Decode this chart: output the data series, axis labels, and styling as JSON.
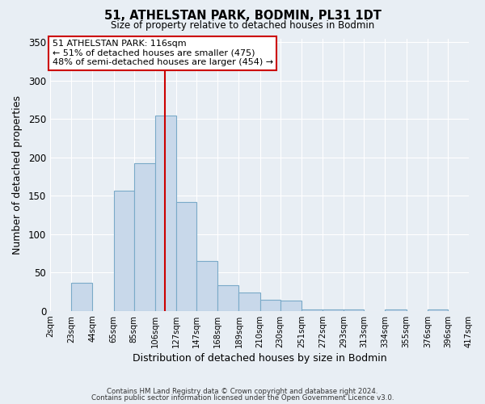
{
  "title": "51, ATHELSTAN PARK, BODMIN, PL31 1DT",
  "subtitle": "Size of property relative to detached houses in Bodmin",
  "xlabel": "Distribution of detached houses by size in Bodmin",
  "ylabel": "Number of detached properties",
  "bar_edges": [
    2,
    23,
    44,
    65,
    85,
    106,
    127,
    147,
    168,
    189,
    210,
    230,
    251,
    272,
    293,
    313,
    334,
    355,
    376,
    396,
    417
  ],
  "bar_heights": [
    0,
    37,
    0,
    157,
    192,
    254,
    142,
    65,
    34,
    24,
    15,
    14,
    2,
    2,
    2,
    0,
    2,
    0,
    2,
    0
  ],
  "bar_color": "#c8d8ea",
  "bar_edgecolor": "#7aaac8",
  "vline_x": 116,
  "vline_color": "#cc0000",
  "ylim": [
    0,
    355
  ],
  "yticks": [
    0,
    50,
    100,
    150,
    200,
    250,
    300,
    350
  ],
  "tick_labels": [
    "2sqm",
    "23sqm",
    "44sqm",
    "65sqm",
    "85sqm",
    "106sqm",
    "127sqm",
    "147sqm",
    "168sqm",
    "189sqm",
    "210sqm",
    "230sqm",
    "251sqm",
    "272sqm",
    "293sqm",
    "313sqm",
    "334sqm",
    "355sqm",
    "376sqm",
    "396sqm",
    "417sqm"
  ],
  "annotation_title": "51 ATHELSTAN PARK: 116sqm",
  "annotation_line1": "← 51% of detached houses are smaller (475)",
  "annotation_line2": "48% of semi-detached houses are larger (454) →",
  "annotation_box_facecolor": "#ffffff",
  "annotation_box_edgecolor": "#cc0000",
  "footer_line1": "Contains HM Land Registry data © Crown copyright and database right 2024.",
  "footer_line2": "Contains public sector information licensed under the Open Government Licence v3.0.",
  "fig_bg_color": "#e8eef4",
  "plot_bg_color": "#e8eef4",
  "grid_color": "#ffffff"
}
